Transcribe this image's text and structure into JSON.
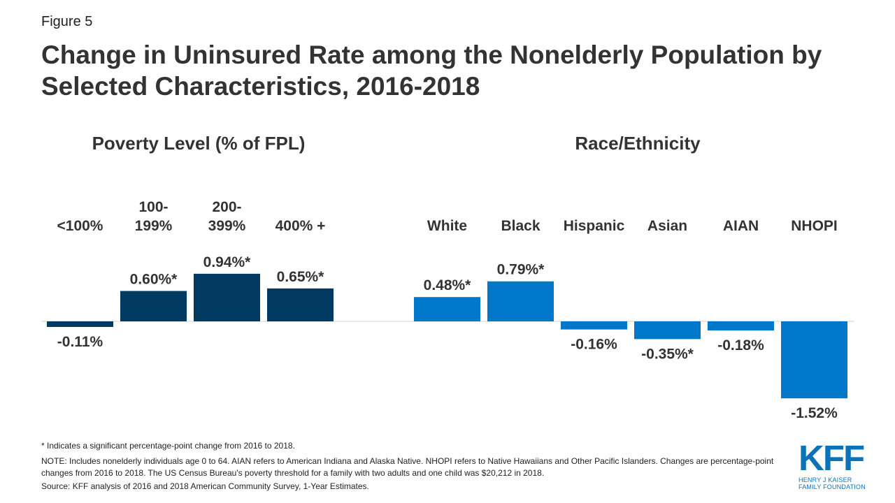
{
  "figure_label": "Figure 5",
  "title": "Change in Uninsured Rate among the Nonelderly Population by Selected Characteristics, 2016-2018",
  "colors": {
    "poverty": "#003a63",
    "race": "#0077c8",
    "text": "#333333",
    "axis": "#d0d0d0",
    "brand": "#0c73b8"
  },
  "chart_data": {
    "type": "bar",
    "unit": "percentage-point change",
    "groups": [
      {
        "name": "Poverty Level (% of FPL)",
        "color": "#003a63",
        "categories": [
          "<100%",
          "100-\n199%",
          "200-\n399%",
          "400% +"
        ],
        "values": [
          -0.11,
          0.6,
          0.94,
          0.65
        ],
        "labels": [
          "-0.11%",
          "0.60%*",
          "0.94%*",
          "0.65%*"
        ]
      },
      {
        "name": "Race/Ethnicity",
        "color": "#0077c8",
        "categories": [
          "White",
          "Black",
          "Hispanic",
          "Asian",
          "AIAN",
          "NHOPI"
        ],
        "values": [
          0.48,
          0.79,
          -0.16,
          -0.35,
          -0.18,
          -1.52
        ],
        "labels": [
          "0.48%*",
          "0.79%*",
          "-0.16%",
          "-0.35%*",
          "-0.18%",
          "-1.52%"
        ]
      }
    ],
    "zero_line": true
  },
  "notes": {
    "significance": "* Indicates a significant percentage-point change from 2016 to 2018.",
    "note": "NOTE: Includes nonelderly individuals age 0 to 64. AIAN  refers to American Indiana and Alaska Native. NHOPI  refers to Native Hawaiians and Other Pacific Islanders. Changes are percentage-point changes from 2016 to 2018. The US Census Bureau's poverty threshold for a family with two adults and one child was $20,212 in 2018.",
    "source": "Source: KFF analysis of 2016 and 2018 American Community Survey, 1-Year Estimates."
  },
  "logo": {
    "mark": "KFF",
    "line1": "HENRY J KAISER",
    "line2": "FAMILY FOUNDATION"
  }
}
